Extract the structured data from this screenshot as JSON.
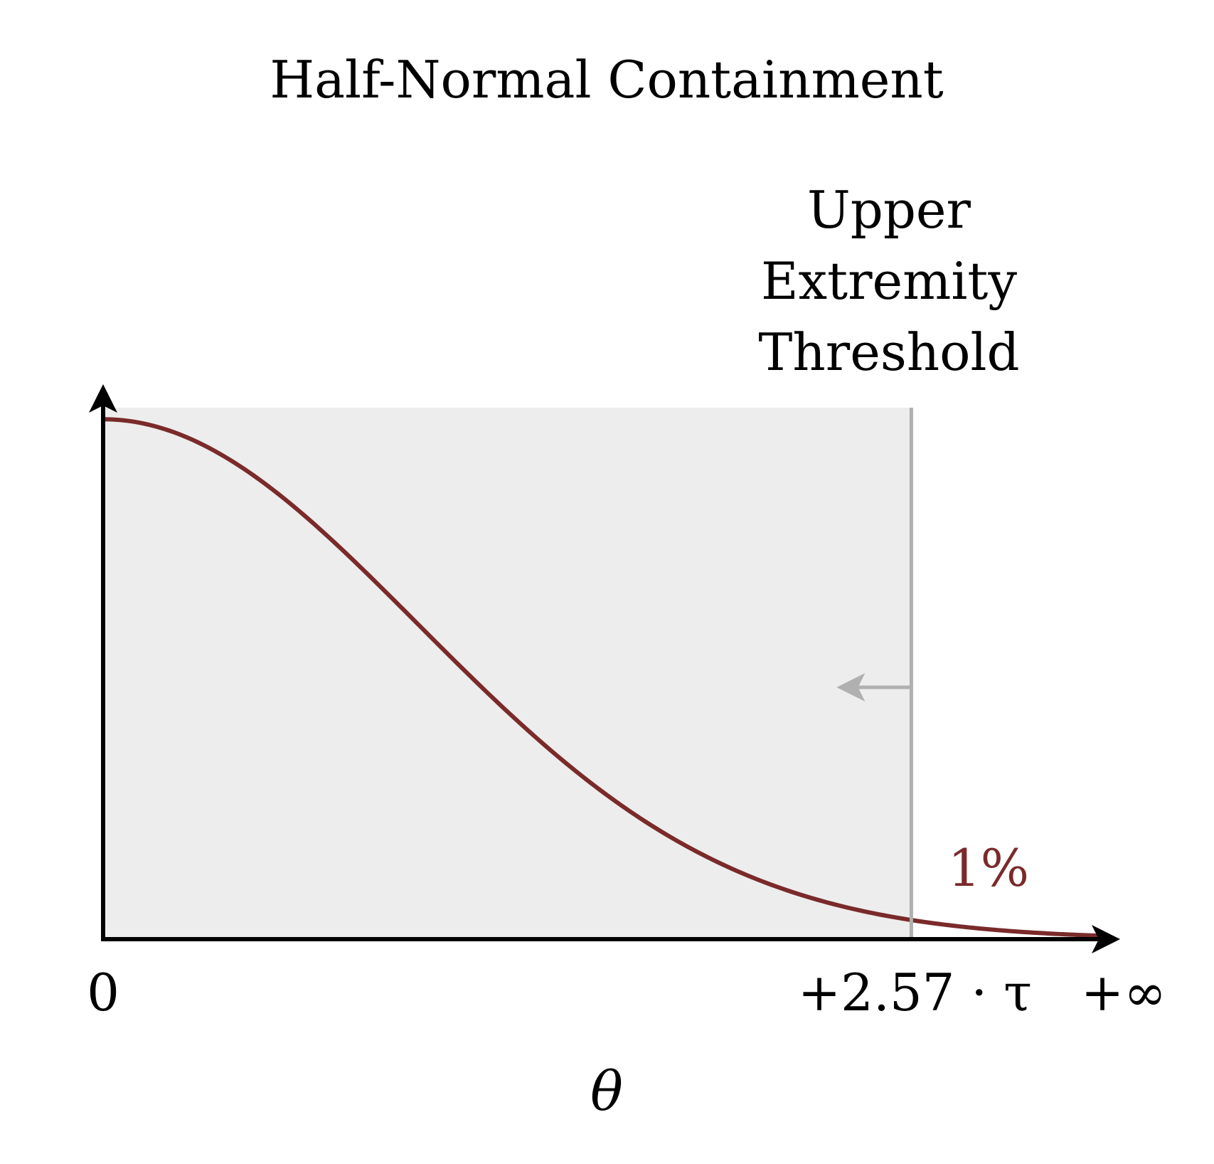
{
  "chart_data": {
    "type": "area",
    "title": "Half-Normal Containment",
    "xlabel": "θ",
    "ylabel": "",
    "distribution": "half-normal",
    "scale_symbol": "τ",
    "x_unit": "τ",
    "xlim": [
      0,
      3.2
    ],
    "ylim": [
      0,
      1.04
    ],
    "grid": false,
    "legend": "none",
    "x_ticks": [
      {
        "value": 0,
        "label": "0"
      },
      {
        "value": 2.57,
        "label": "+2.57 · τ"
      },
      {
        "value": 3.2,
        "label": "+∞"
      }
    ],
    "threshold": {
      "value": 2.57,
      "label_lines": [
        "Upper",
        "Extremity",
        "Threshold"
      ],
      "tail_label": "1%",
      "tail_probability": 0.01
    },
    "series": [
      {
        "values_fn": "exp(-x^2/2)",
        "x": [
          0,
          0.25,
          0.5,
          0.75,
          1.0,
          1.25,
          1.5,
          1.75,
          2.0,
          2.25,
          2.5,
          2.57,
          2.75,
          3.0,
          3.2
        ],
        "y": [
          1.0,
          0.969,
          0.8825,
          0.7548,
          0.6065,
          0.4578,
          0.3247,
          0.2163,
          0.1353,
          0.0796,
          0.0439,
          0.0368,
          0.0228,
          0.0111,
          0.006
        ]
      }
    ],
    "colors": {
      "curve": "#7a2a2a",
      "shaded_region": "#ededed",
      "threshold_line": "#b0b0b0",
      "axis": "#000000",
      "tail_label": "#7a2a2a"
    }
  }
}
